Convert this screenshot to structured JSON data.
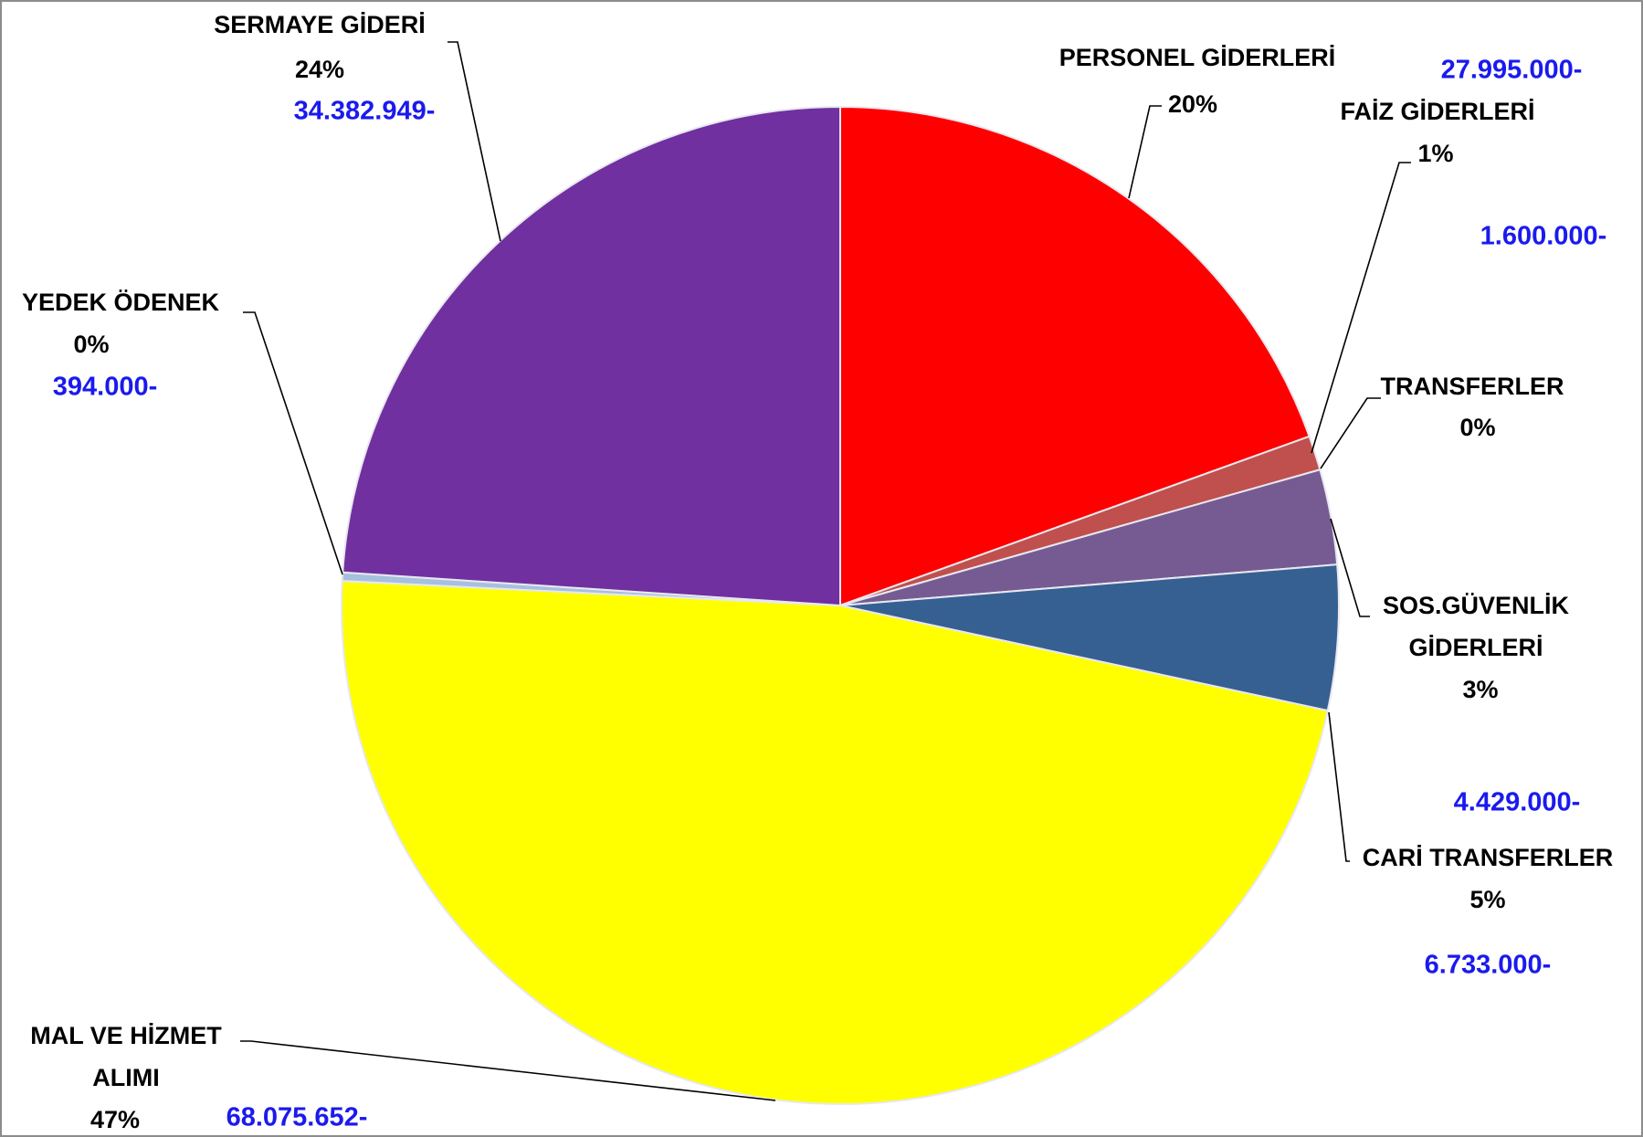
{
  "chart_data": {
    "type": "pie",
    "categories": [
      "PERSONEL GİDERLERİ",
      "FAİZ GİDERLERİ",
      "TRANSFERLER",
      "SOS.GÜVENLİK GİDERLERİ",
      "CARİ TRANSFERLER",
      "MAL VE HİZMET ALIMI",
      "YEDEK ÖDENEK",
      "SERMAYE GİDERİ"
    ],
    "values": [
      27995000,
      1600000,
      0,
      4429000,
      6733000,
      68075652,
      394000,
      34382949
    ],
    "value_labels": [
      "27.995.000-",
      "1.600.000-",
      null,
      "4.429.000-",
      "6.733.000-",
      "68.075.652-",
      "394.000-",
      "34.382.949-"
    ],
    "percent_labels": [
      "20%",
      "1%",
      "0%",
      "3%",
      "5%",
      "47%",
      "0%",
      "24%"
    ],
    "colors": [
      "#ff0000",
      "#c0504d",
      "#4f81bd",
      "#765b93",
      "#376092",
      "#ffff00",
      "#a6c0de",
      "#7030a0"
    ]
  }
}
